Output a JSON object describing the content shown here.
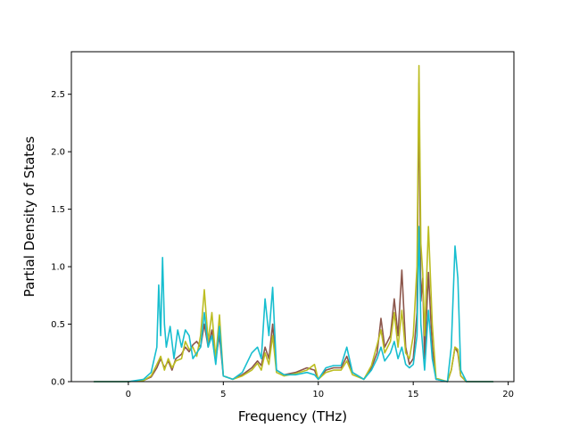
{
  "chart_data": {
    "type": "line",
    "title": "",
    "xlabel": "Frequency (THz)",
    "ylabel": "Partial Density of States",
    "xlim": [
      -3,
      20.3
    ],
    "ylim": [
      0,
      2.87
    ],
    "x_ticks": [
      0,
      5,
      10,
      15,
      20
    ],
    "y_ticks": [
      0.0,
      0.5,
      1.0,
      1.5,
      2.0,
      2.5
    ],
    "x_tick_labels": [
      "0",
      "5",
      "10",
      "15",
      "20"
    ],
    "y_tick_labels": [
      "0.0",
      "0.5",
      "1.0",
      "1.5",
      "2.0",
      "2.5"
    ],
    "grid": false,
    "legend": "none",
    "series": [
      {
        "color": "#8c564b",
        "points": [
          [
            -1.8,
            0
          ],
          [
            0,
            0
          ],
          [
            0.8,
            0.01
          ],
          [
            1.2,
            0.04
          ],
          [
            1.5,
            0.12
          ],
          [
            1.7,
            0.2
          ],
          [
            1.9,
            0.12
          ],
          [
            2.1,
            0.18
          ],
          [
            2.3,
            0.1
          ],
          [
            2.5,
            0.2
          ],
          [
            2.8,
            0.24
          ],
          [
            3.0,
            0.3
          ],
          [
            3.2,
            0.26
          ],
          [
            3.4,
            0.32
          ],
          [
            3.6,
            0.35
          ],
          [
            3.8,
            0.3
          ],
          [
            4.0,
            0.5
          ],
          [
            4.2,
            0.3
          ],
          [
            4.4,
            0.45
          ],
          [
            4.6,
            0.2
          ],
          [
            4.8,
            0.4
          ],
          [
            5.0,
            0.05
          ],
          [
            5.5,
            0.02
          ],
          [
            6.0,
            0.06
          ],
          [
            6.5,
            0.12
          ],
          [
            6.8,
            0.18
          ],
          [
            7.0,
            0.14
          ],
          [
            7.2,
            0.3
          ],
          [
            7.4,
            0.2
          ],
          [
            7.6,
            0.5
          ],
          [
            7.8,
            0.1
          ],
          [
            8.2,
            0.06
          ],
          [
            8.8,
            0.08
          ],
          [
            9.4,
            0.12
          ],
          [
            9.8,
            0.1
          ],
          [
            10.0,
            0.02
          ],
          [
            10.4,
            0.1
          ],
          [
            10.8,
            0.12
          ],
          [
            11.2,
            0.12
          ],
          [
            11.5,
            0.22
          ],
          [
            11.8,
            0.08
          ],
          [
            12.4,
            0.02
          ],
          [
            12.8,
            0.12
          ],
          [
            13.1,
            0.25
          ],
          [
            13.3,
            0.55
          ],
          [
            13.5,
            0.3
          ],
          [
            13.8,
            0.4
          ],
          [
            14.0,
            0.72
          ],
          [
            14.2,
            0.4
          ],
          [
            14.4,
            0.97
          ],
          [
            14.6,
            0.3
          ],
          [
            14.8,
            0.15
          ],
          [
            15.0,
            0.2
          ],
          [
            15.2,
            0.6
          ],
          [
            15.3,
            2.6
          ],
          [
            15.4,
            0.7
          ],
          [
            15.5,
            0.9
          ],
          [
            15.6,
            0.2
          ],
          [
            15.8,
            0.95
          ],
          [
            16.0,
            0.3
          ],
          [
            16.2,
            0.02
          ],
          [
            16.8,
            0.0
          ],
          [
            17.0,
            0.1
          ],
          [
            17.2,
            0.3
          ],
          [
            17.35,
            0.25
          ],
          [
            17.5,
            0.05
          ],
          [
            17.8,
            0
          ],
          [
            19.2,
            0
          ]
        ]
      },
      {
        "color": "#bcbd22",
        "points": [
          [
            -1.8,
            0
          ],
          [
            0,
            0
          ],
          [
            0.8,
            0.01
          ],
          [
            1.2,
            0.05
          ],
          [
            1.5,
            0.15
          ],
          [
            1.7,
            0.22
          ],
          [
            1.9,
            0.1
          ],
          [
            2.1,
            0.2
          ],
          [
            2.3,
            0.12
          ],
          [
            2.5,
            0.18
          ],
          [
            2.8,
            0.2
          ],
          [
            3.0,
            0.35
          ],
          [
            3.2,
            0.28
          ],
          [
            3.4,
            0.3
          ],
          [
            3.6,
            0.22
          ],
          [
            3.8,
            0.4
          ],
          [
            4.0,
            0.8
          ],
          [
            4.2,
            0.35
          ],
          [
            4.4,
            0.6
          ],
          [
            4.6,
            0.2
          ],
          [
            4.8,
            0.58
          ],
          [
            5.0,
            0.05
          ],
          [
            5.5,
            0.02
          ],
          [
            6.0,
            0.05
          ],
          [
            6.5,
            0.1
          ],
          [
            6.8,
            0.16
          ],
          [
            7.0,
            0.1
          ],
          [
            7.2,
            0.25
          ],
          [
            7.4,
            0.15
          ],
          [
            7.6,
            0.4
          ],
          [
            7.8,
            0.08
          ],
          [
            8.2,
            0.05
          ],
          [
            8.8,
            0.07
          ],
          [
            9.4,
            0.1
          ],
          [
            9.8,
            0.15
          ],
          [
            10.0,
            0.02
          ],
          [
            10.4,
            0.08
          ],
          [
            10.8,
            0.1
          ],
          [
            11.2,
            0.1
          ],
          [
            11.5,
            0.18
          ],
          [
            11.8,
            0.06
          ],
          [
            12.4,
            0.02
          ],
          [
            12.8,
            0.14
          ],
          [
            13.1,
            0.32
          ],
          [
            13.3,
            0.45
          ],
          [
            13.5,
            0.25
          ],
          [
            13.8,
            0.35
          ],
          [
            14.0,
            0.6
          ],
          [
            14.2,
            0.3
          ],
          [
            14.4,
            0.62
          ],
          [
            14.6,
            0.25
          ],
          [
            14.8,
            0.2
          ],
          [
            15.0,
            0.4
          ],
          [
            15.2,
            1.0
          ],
          [
            15.3,
            2.75
          ],
          [
            15.4,
            1.2
          ],
          [
            15.5,
            0.95
          ],
          [
            15.6,
            0.4
          ],
          [
            15.8,
            1.35
          ],
          [
            16.0,
            0.5
          ],
          [
            16.2,
            0.03
          ],
          [
            16.8,
            0.0
          ],
          [
            17.0,
            0.1
          ],
          [
            17.2,
            0.3
          ],
          [
            17.35,
            0.28
          ],
          [
            17.5,
            0.05
          ],
          [
            17.8,
            0
          ],
          [
            19.2,
            0
          ]
        ]
      },
      {
        "color": "#17becf",
        "points": [
          [
            -1.8,
            0
          ],
          [
            0,
            0
          ],
          [
            0.8,
            0.02
          ],
          [
            1.2,
            0.08
          ],
          [
            1.5,
            0.3
          ],
          [
            1.6,
            0.84
          ],
          [
            1.7,
            0.4
          ],
          [
            1.8,
            1.08
          ],
          [
            1.9,
            0.5
          ],
          [
            2.0,
            0.3
          ],
          [
            2.2,
            0.48
          ],
          [
            2.4,
            0.2
          ],
          [
            2.6,
            0.45
          ],
          [
            2.8,
            0.3
          ],
          [
            3.0,
            0.45
          ],
          [
            3.2,
            0.4
          ],
          [
            3.4,
            0.2
          ],
          [
            3.6,
            0.25
          ],
          [
            3.8,
            0.3
          ],
          [
            4.0,
            0.6
          ],
          [
            4.2,
            0.3
          ],
          [
            4.4,
            0.4
          ],
          [
            4.6,
            0.15
          ],
          [
            4.8,
            0.48
          ],
          [
            5.0,
            0.05
          ],
          [
            5.5,
            0.02
          ],
          [
            6.0,
            0.08
          ],
          [
            6.5,
            0.25
          ],
          [
            6.8,
            0.3
          ],
          [
            7.0,
            0.2
          ],
          [
            7.2,
            0.72
          ],
          [
            7.4,
            0.4
          ],
          [
            7.6,
            0.82
          ],
          [
            7.8,
            0.1
          ],
          [
            8.2,
            0.06
          ],
          [
            8.8,
            0.06
          ],
          [
            9.4,
            0.08
          ],
          [
            9.8,
            0.06
          ],
          [
            10.0,
            0.02
          ],
          [
            10.4,
            0.12
          ],
          [
            10.8,
            0.14
          ],
          [
            11.2,
            0.14
          ],
          [
            11.5,
            0.3
          ],
          [
            11.8,
            0.08
          ],
          [
            12.4,
            0.02
          ],
          [
            12.8,
            0.1
          ],
          [
            13.1,
            0.2
          ],
          [
            13.3,
            0.3
          ],
          [
            13.5,
            0.18
          ],
          [
            13.8,
            0.25
          ],
          [
            14.0,
            0.35
          ],
          [
            14.2,
            0.2
          ],
          [
            14.4,
            0.3
          ],
          [
            14.6,
            0.15
          ],
          [
            14.8,
            0.12
          ],
          [
            15.0,
            0.15
          ],
          [
            15.2,
            0.4
          ],
          [
            15.3,
            1.35
          ],
          [
            15.4,
            0.5
          ],
          [
            15.5,
            0.3
          ],
          [
            15.6,
            0.1
          ],
          [
            15.8,
            0.62
          ],
          [
            16.0,
            0.2
          ],
          [
            16.2,
            0.02
          ],
          [
            16.8,
            0.0
          ],
          [
            17.0,
            0.3
          ],
          [
            17.2,
            1.18
          ],
          [
            17.35,
            0.9
          ],
          [
            17.5,
            0.1
          ],
          [
            17.8,
            0
          ],
          [
            19.2,
            0
          ]
        ]
      }
    ]
  }
}
